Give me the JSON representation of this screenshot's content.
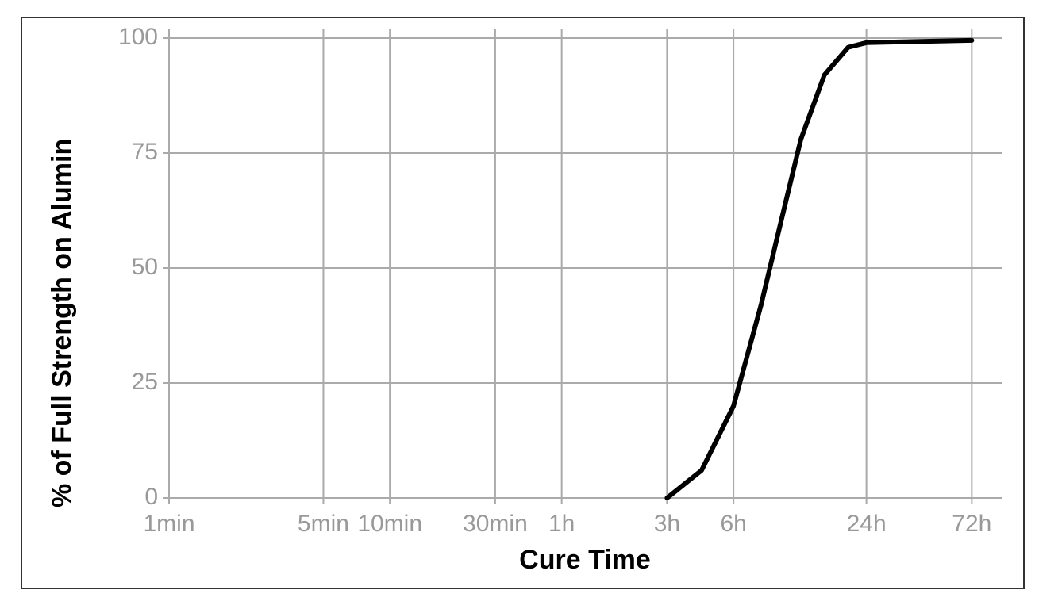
{
  "chart_data": {
    "type": "line",
    "x_label": "Cure Time",
    "y_label": "% of Full Strength on Alumin",
    "xscale": "log",
    "grid": true,
    "x": [
      180,
      258,
      360,
      480,
      590,
      727,
      929,
      1191,
      1440,
      4320
    ],
    "series": [
      {
        "color": "#000000",
        "values": [
          0,
          6,
          20,
          42,
          60,
          78,
          92,
          98,
          99,
          99.5
        ]
      }
    ],
    "xlim": [
      1,
      5900
    ],
    "xticks": [
      {
        "value": 1,
        "label": "1min"
      },
      {
        "value": 5,
        "label": "5min"
      },
      {
        "value": 10,
        "label": "10min"
      },
      {
        "value": 30,
        "label": "30min"
      },
      {
        "value": 60,
        "label": "1h"
      },
      {
        "value": 180,
        "label": "3h"
      },
      {
        "value": 360,
        "label": "6h"
      },
      {
        "value": 1440,
        "label": "24h"
      },
      {
        "value": 4320,
        "label": "72h"
      }
    ],
    "ylim": [
      0,
      100
    ],
    "yticks": [
      0,
      25,
      50,
      75,
      100
    ]
  }
}
